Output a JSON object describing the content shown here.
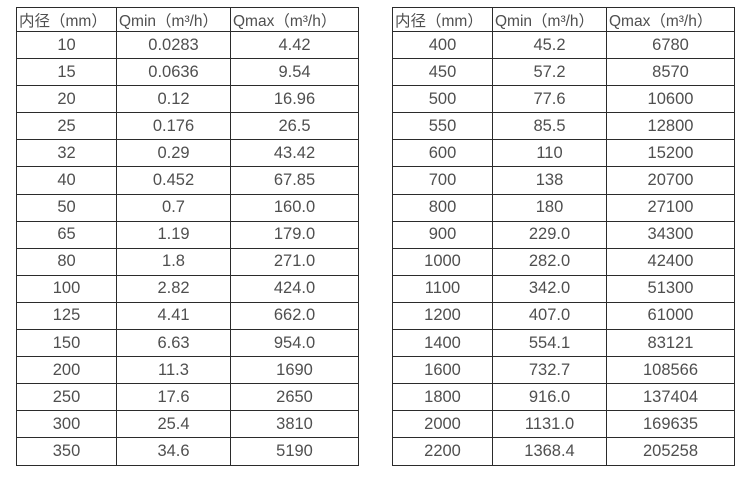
{
  "colors": {
    "background": "#ffffff",
    "border": "#2b2b2b",
    "text": "#4f4f4f"
  },
  "tables": [
    {
      "name": "flow-spec-table-small-diameters",
      "headers": [
        "内径（mm）",
        "Qmin（m³/h）",
        "Qmax（m³/h）"
      ],
      "rows": [
        [
          "10",
          "0.0283",
          "4.42"
        ],
        [
          "15",
          "0.0636",
          "9.54"
        ],
        [
          "20",
          "0.12",
          "16.96"
        ],
        [
          "25",
          "0.176",
          "26.5"
        ],
        [
          "32",
          "0.29",
          "43.42"
        ],
        [
          "40",
          "0.452",
          "67.85"
        ],
        [
          "50",
          "0.7",
          "160.0"
        ],
        [
          "65",
          "1.19",
          "179.0"
        ],
        [
          "80",
          "1.8",
          "271.0"
        ],
        [
          "100",
          "2.82",
          "424.0"
        ],
        [
          "125",
          "4.41",
          "662.0"
        ],
        [
          "150",
          "6.63",
          "954.0"
        ],
        [
          "200",
          "11.3",
          "1690"
        ],
        [
          "250",
          "17.6",
          "2650"
        ],
        [
          "300",
          "25.4",
          "3810"
        ],
        [
          "350",
          "34.6",
          "5190"
        ]
      ]
    },
    {
      "name": "flow-spec-table-large-diameters",
      "headers": [
        "内径（mm）",
        "Qmin（m³/h）",
        "Qmax（m³/h）"
      ],
      "rows": [
        [
          "400",
          "45.2",
          "6780"
        ],
        [
          "450",
          "57.2",
          "8570"
        ],
        [
          "500",
          "77.6",
          "10600"
        ],
        [
          "550",
          "85.5",
          "12800"
        ],
        [
          "600",
          "110",
          "15200"
        ],
        [
          "700",
          "138",
          "20700"
        ],
        [
          "800",
          "180",
          "27100"
        ],
        [
          "900",
          "229.0",
          "34300"
        ],
        [
          "1000",
          "282.0",
          "42400"
        ],
        [
          "1100",
          "342.0",
          "51300"
        ],
        [
          "1200",
          "407.0",
          "61000"
        ],
        [
          "1400",
          "554.1",
          "83121"
        ],
        [
          "1600",
          "732.7",
          "108566"
        ],
        [
          "1800",
          "916.0",
          "137404"
        ],
        [
          "2000",
          "1131.0",
          "169635"
        ],
        [
          "2200",
          "1368.4",
          "205258"
        ]
      ]
    }
  ]
}
